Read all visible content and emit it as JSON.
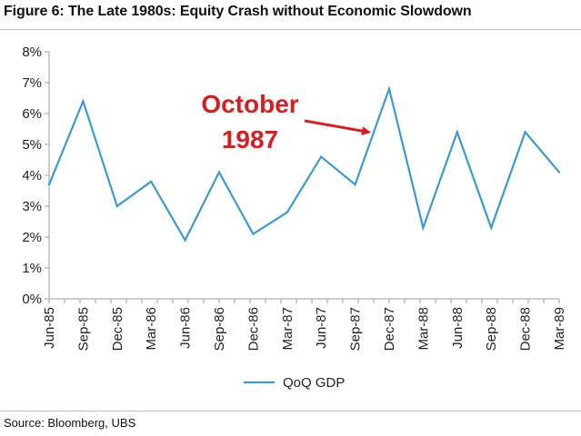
{
  "title": "Figure 6: The Late 1980s: Equity Crash without Economic Slowdown",
  "source": "Source:  Bloomberg, UBS",
  "colors": {
    "series": "#3a9ad6",
    "annotation": "#d81e1e",
    "axis": "#9e9e9e"
  },
  "chart_data": {
    "type": "line",
    "title": "Figure 6: The Late 1980s: Equity Crash without Economic Slowdown",
    "xlabel": "",
    "ylabel": "",
    "ylim": [
      0,
      8
    ],
    "y_ticks": [
      "0%",
      "1%",
      "2%",
      "3%",
      "4%",
      "5%",
      "6%",
      "7%",
      "8%"
    ],
    "categories": [
      "Jun-85",
      "Sep-85",
      "Dec-85",
      "Mar-86",
      "Jun-86",
      "Sep-86",
      "Dec-86",
      "Mar-87",
      "Jun-87",
      "Sep-87",
      "Dec-87",
      "Mar-88",
      "Jun-88",
      "Sep-88",
      "Dec-88",
      "Mar-89"
    ],
    "x_points": 34,
    "series": [
      {
        "name": "QoQ GDP",
        "values": [
          3.7,
          6.4,
          3.0,
          3.8,
          1.9,
          4.1,
          2.1,
          2.8,
          4.6,
          3.7,
          6.8,
          2.3,
          5.4,
          2.3,
          5.4,
          4.1
        ]
      }
    ],
    "legend": {
      "position": "bottom",
      "entries": [
        "QoQ GDP"
      ]
    },
    "annotations": [
      {
        "text_lines": [
          "October",
          "1987"
        ],
        "points_to": "Dec-87"
      }
    ],
    "grid": false
  }
}
